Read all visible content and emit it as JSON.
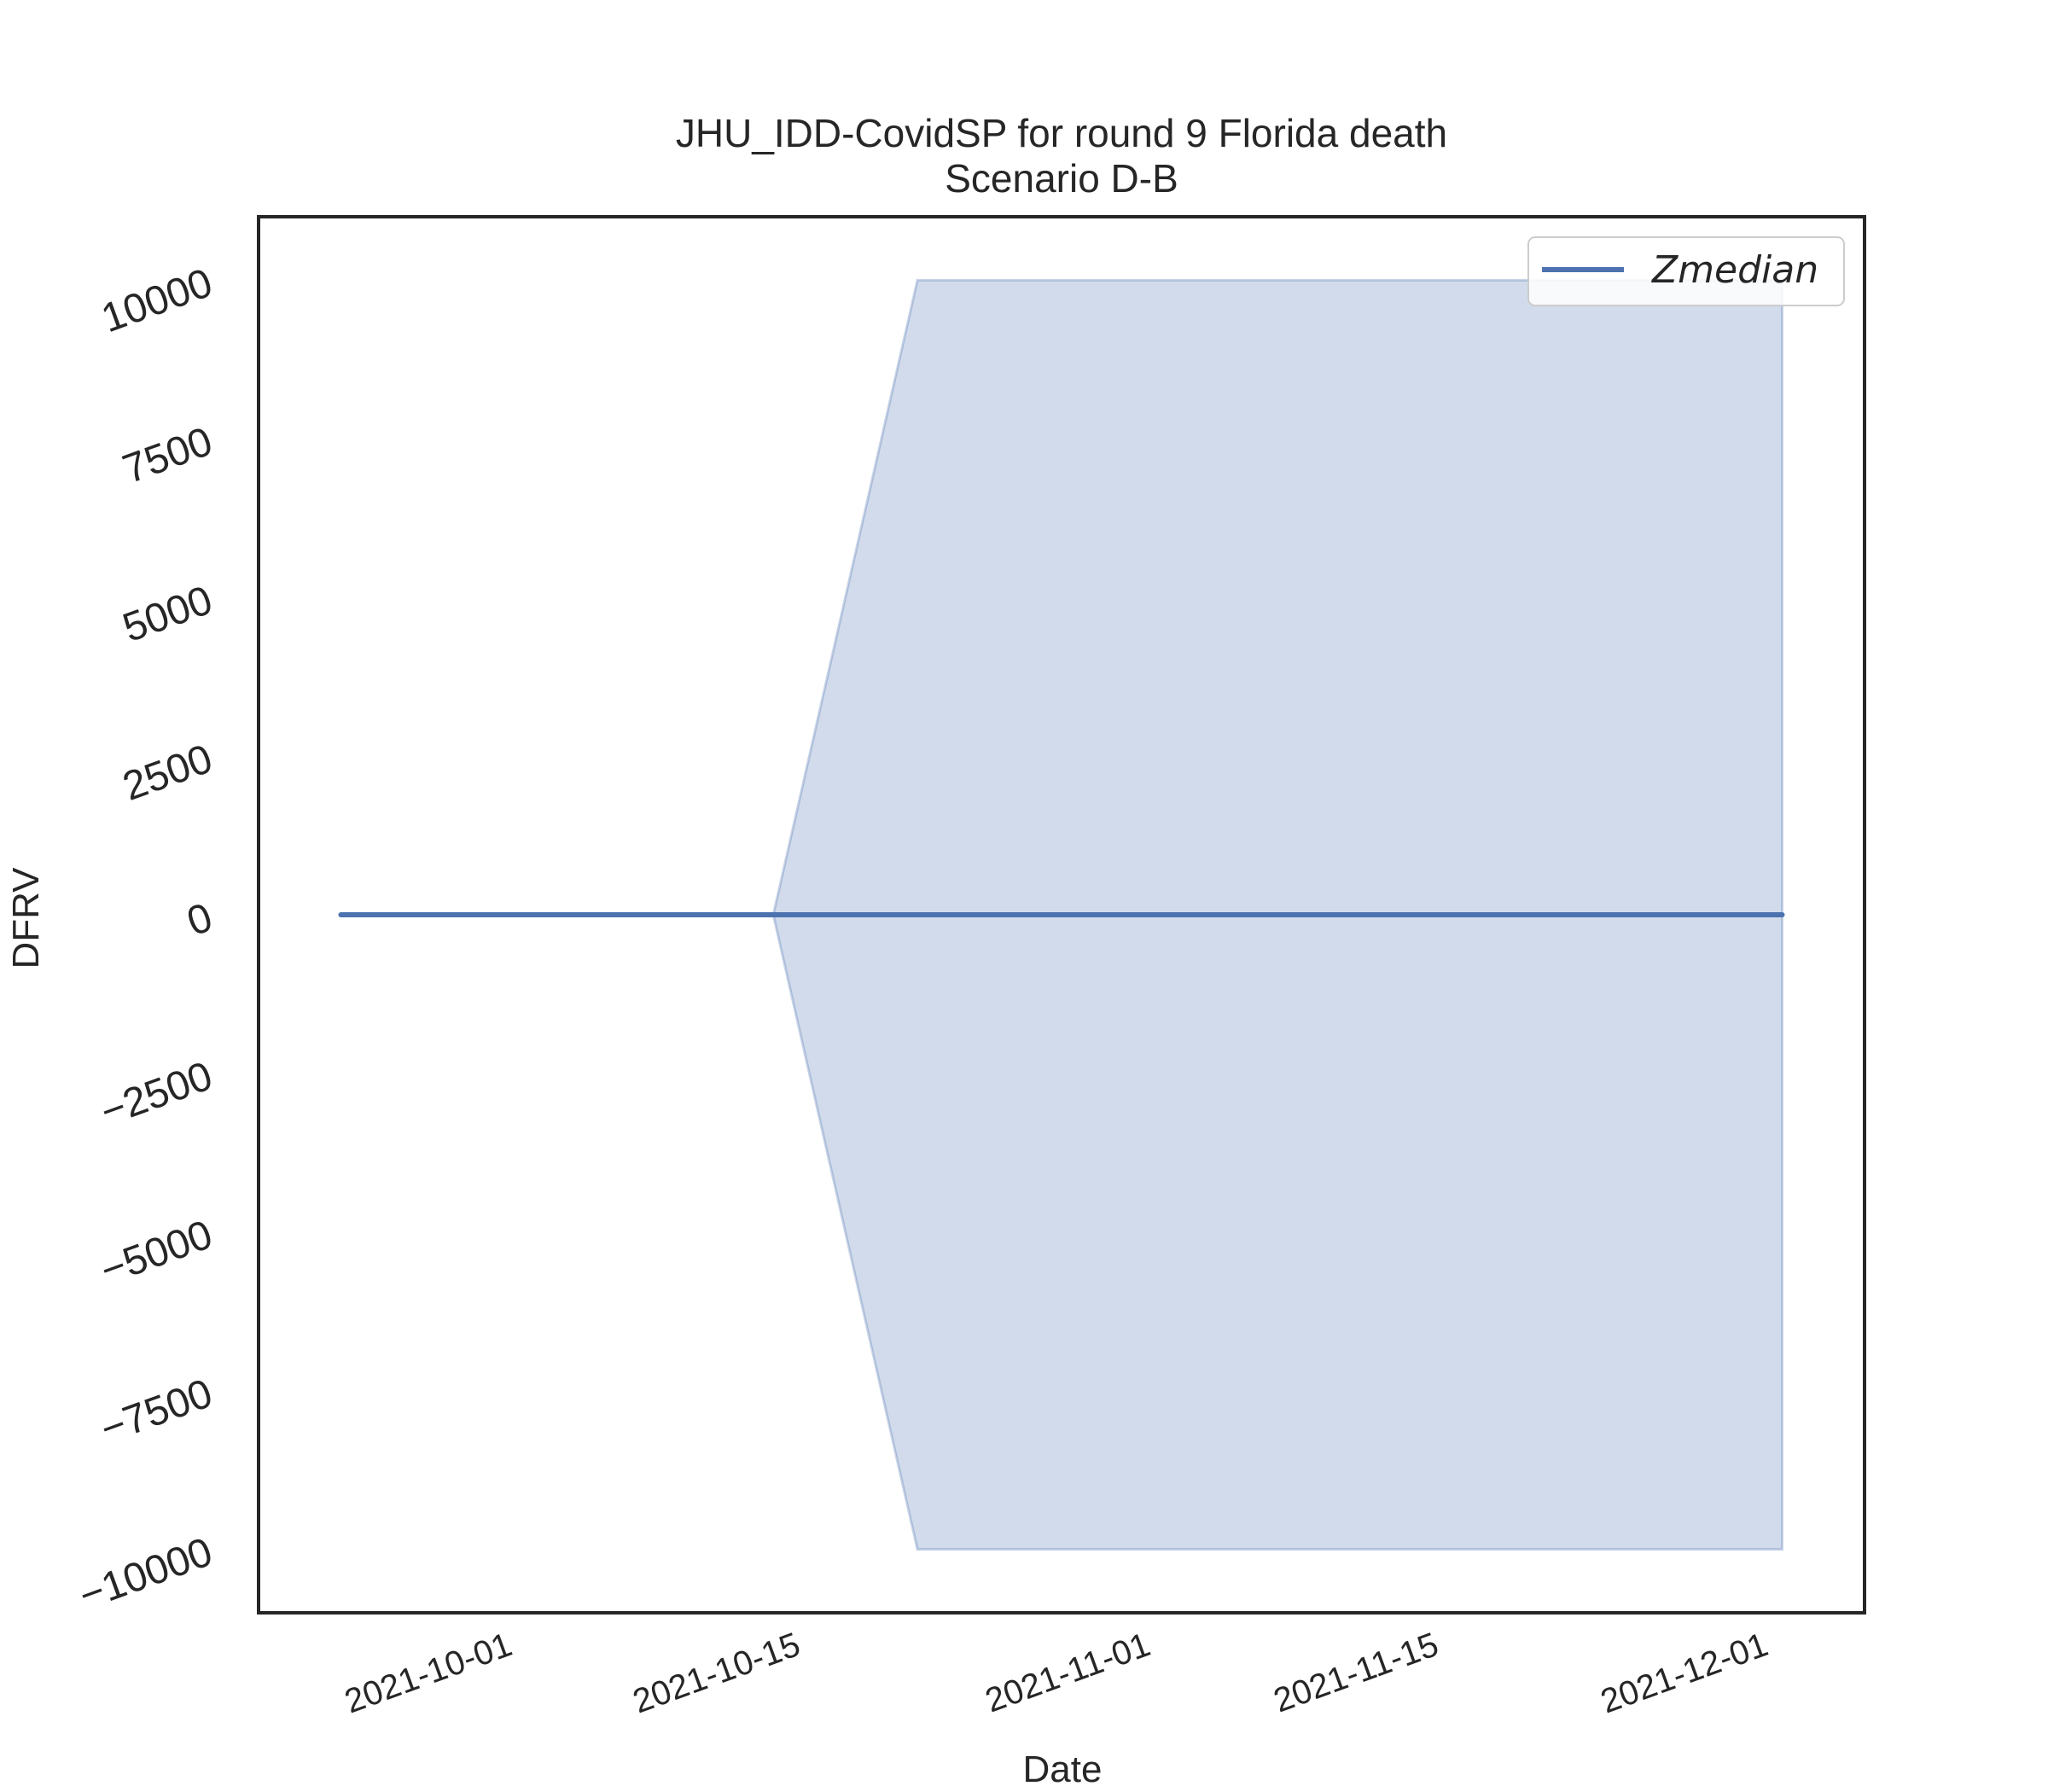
{
  "chart_data": {
    "type": "line",
    "title": "JHU_IDD-CovidSP for round 9 Florida death",
    "subtitle": "Scenario D-B",
    "xlabel": "Date",
    "ylabel": "DFRV",
    "xlim": [
      "2021-09-19",
      "2021-12-06"
    ],
    "ylim": [
      -11000,
      11000
    ],
    "x_ticks": [
      "2021-10-01",
      "2021-10-15",
      "2021-11-01",
      "2021-11-15",
      "2021-12-01"
    ],
    "y_ticks": [
      10000,
      7500,
      5000,
      2500,
      0,
      -2500,
      -5000,
      -7500,
      -10000
    ],
    "y_tick_labels": [
      "10000",
      "7500",
      "5000",
      "2500",
      "0",
      "−2500",
      "−5000",
      "−7500",
      "−10000"
    ],
    "legend": {
      "position": "top-right",
      "entries": [
        "Zmedian"
      ]
    },
    "grid": false,
    "series": [
      {
        "name": "Zmedian",
        "color": "#4c72b0",
        "x": [
          "2021-09-23",
          "2021-10-14",
          "2021-10-21",
          "2021-12-02"
        ],
        "y": [
          0,
          0,
          0,
          0
        ]
      }
    ],
    "band": {
      "color": "#4c72b0",
      "x": [
        "2021-10-14",
        "2021-10-21",
        "2021-12-02"
      ],
      "lower": [
        0,
        -10000,
        -10000
      ],
      "upper": [
        0,
        10000,
        10000
      ]
    }
  }
}
